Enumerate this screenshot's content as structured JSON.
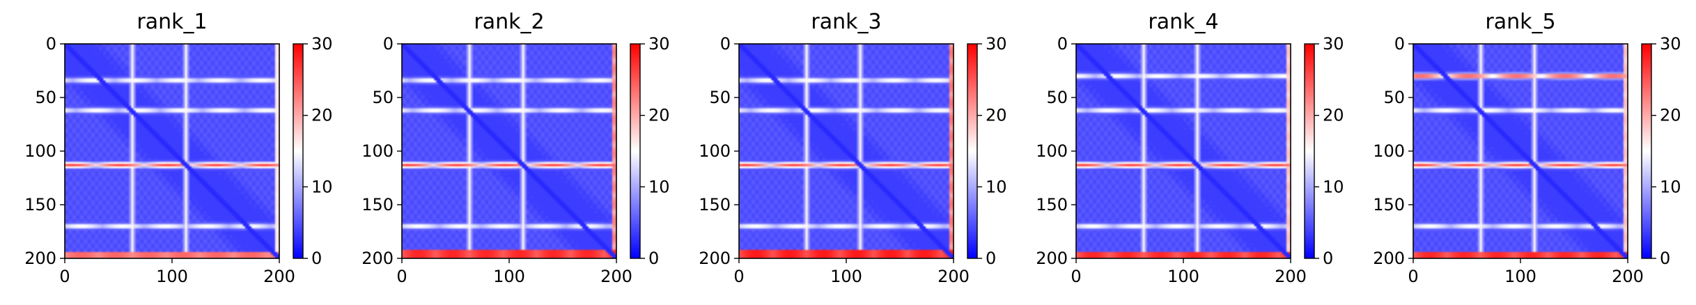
{
  "chart_data": [
    {
      "type": "heatmap",
      "title": "rank_1",
      "xlim": [
        0,
        200
      ],
      "ylim": [
        200,
        0
      ],
      "xticks": [
        "0",
        "100",
        "200"
      ],
      "yticks": [
        "0",
        "50",
        "100",
        "150",
        "200"
      ],
      "colorbar": {
        "colormap": "bwr",
        "range": [
          0,
          30
        ],
        "ticks": [
          "0",
          "10",
          "20",
          "30"
        ]
      },
      "features": {
        "white_rows": [
          34,
          62,
          170
        ],
        "red_rows": [
          113
        ],
        "bottom_band": [
          195,
          200,
          0.6
        ],
        "right_band": 0.1,
        "white_cols": [
          63,
          113
        ]
      }
    },
    {
      "type": "heatmap",
      "title": "rank_2",
      "xlim": [
        0,
        200
      ],
      "ylim": [
        200,
        0
      ],
      "xticks": [
        "0",
        "100",
        "200"
      ],
      "yticks": [
        "0",
        "50",
        "100",
        "150",
        "200"
      ],
      "colorbar": {
        "colormap": "bwr",
        "range": [
          0,
          30
        ],
        "ticks": [
          "0",
          "10",
          "20",
          "30"
        ]
      },
      "features": {
        "white_rows": [
          34,
          62,
          170
        ],
        "red_rows": [
          113
        ],
        "bottom_band": [
          192,
          200,
          0.85
        ],
        "right_band": 0.5,
        "white_cols": [
          63,
          113
        ]
      }
    },
    {
      "type": "heatmap",
      "title": "rank_3",
      "xlim": [
        0,
        200
      ],
      "ylim": [
        200,
        0
      ],
      "xticks": [
        "0",
        "100",
        "200"
      ],
      "yticks": [
        "0",
        "50",
        "100",
        "150",
        "200"
      ],
      "colorbar": {
        "colormap": "bwr",
        "range": [
          0,
          30
        ],
        "ticks": [
          "0",
          "10",
          "20",
          "30"
        ]
      },
      "features": {
        "white_rows": [
          34,
          62,
          170
        ],
        "red_rows": [
          113
        ],
        "bottom_band": [
          192,
          200,
          0.9
        ],
        "right_band": 0.55,
        "white_cols": [
          63,
          113
        ]
      }
    },
    {
      "type": "heatmap",
      "title": "rank_4",
      "xlim": [
        0,
        200
      ],
      "ylim": [
        200,
        0
      ],
      "xticks": [
        "0",
        "100",
        "200"
      ],
      "yticks": [
        "0",
        "50",
        "100",
        "150",
        "200"
      ],
      "colorbar": {
        "colormap": "bwr",
        "range": [
          0,
          30
        ],
        "ticks": [
          "0",
          "10",
          "20",
          "30"
        ]
      },
      "features": {
        "white_rows": [
          30,
          62,
          170
        ],
        "red_rows": [
          113
        ],
        "bottom_band": [
          194,
          200,
          0.85
        ],
        "right_band": 0.25,
        "white_cols": [
          63,
          113
        ]
      }
    },
    {
      "type": "heatmap",
      "title": "rank_5",
      "xlim": [
        0,
        200
      ],
      "ylim": [
        200,
        0
      ],
      "xticks": [
        "0",
        "100",
        "200"
      ],
      "yticks": [
        "0",
        "50",
        "100",
        "150",
        "200"
      ],
      "colorbar": {
        "colormap": "bwr",
        "range": [
          0,
          30
        ],
        "ticks": [
          "0",
          "10",
          "20",
          "30"
        ]
      },
      "features": {
        "white_rows": [
          30,
          62,
          170
        ],
        "red_rows": [
          30,
          113
        ],
        "bottom_band": [
          194,
          200,
          0.85
        ],
        "right_band": 0.25,
        "white_cols": [
          63,
          113
        ]
      }
    }
  ]
}
